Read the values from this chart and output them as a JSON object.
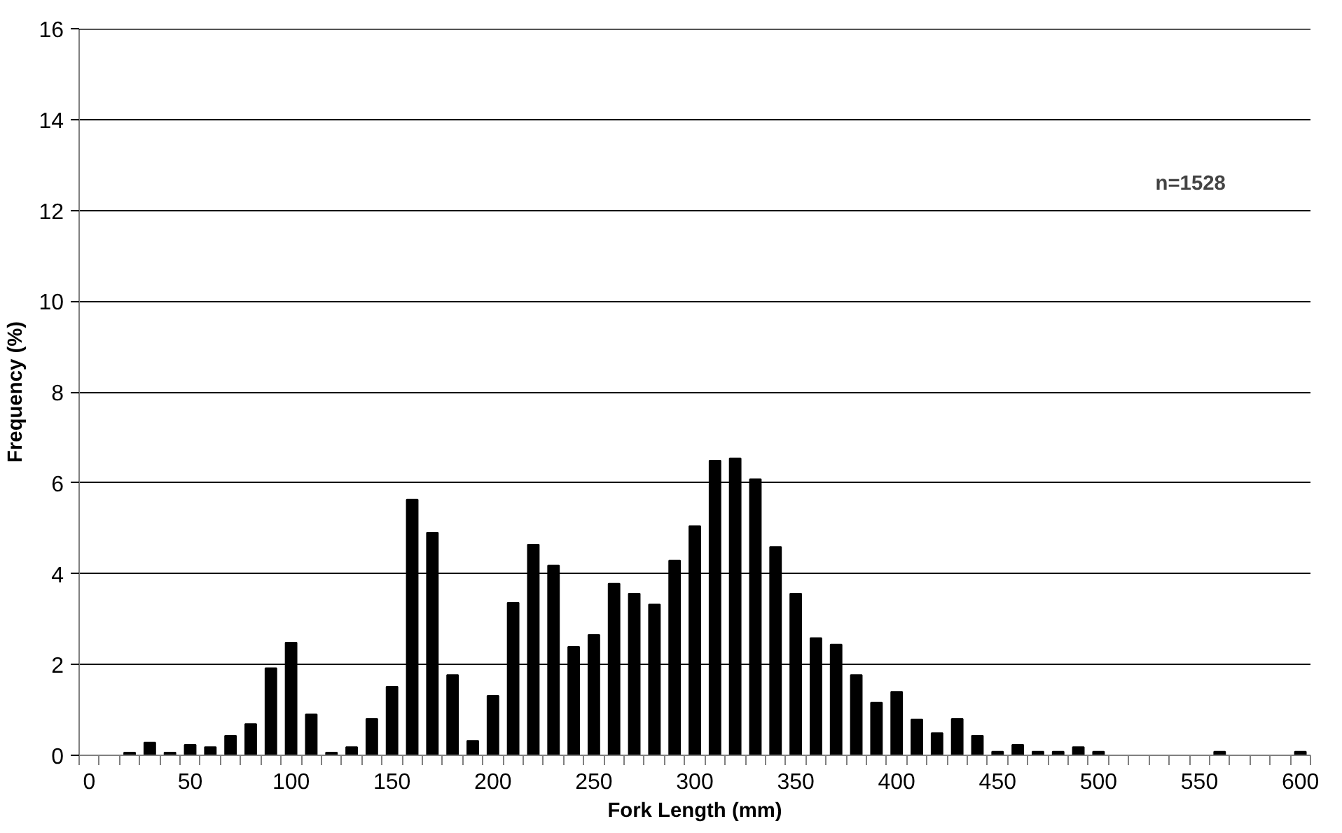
{
  "chart_data": {
    "type": "bar",
    "xlabel": "Fork Length (mm)",
    "ylabel": "Frequency (%)",
    "annotations": [
      "n=1528"
    ],
    "x": [
      0,
      10,
      20,
      30,
      40,
      50,
      60,
      70,
      80,
      90,
      100,
      110,
      120,
      130,
      140,
      150,
      160,
      170,
      180,
      190,
      200,
      210,
      220,
      230,
      240,
      250,
      260,
      270,
      280,
      290,
      300,
      310,
      320,
      330,
      340,
      350,
      360,
      370,
      380,
      390,
      400,
      410,
      420,
      430,
      440,
      450,
      460,
      470,
      480,
      490,
      500,
      510,
      520,
      530,
      540,
      550,
      560,
      570,
      580,
      590,
      600
    ],
    "values": [
      0,
      0,
      0.06,
      0.28,
      0.06,
      0.23,
      0.18,
      0.43,
      0.69,
      1.92,
      2.48,
      0.9,
      0.06,
      0.18,
      0.8,
      1.51,
      5.63,
      4.9,
      1.77,
      0.32,
      1.31,
      3.36,
      4.64,
      4.18,
      2.39,
      2.65,
      3.78,
      3.56,
      3.32,
      4.29,
      5.05,
      6.49,
      6.54,
      6.08,
      4.59,
      3.56,
      2.58,
      2.44,
      1.77,
      1.16,
      1.4,
      0.79,
      0.49,
      0.8,
      0.43,
      0.08,
      0.23,
      0.08,
      0.08,
      0.18,
      0.08,
      0,
      0,
      0,
      0,
      0,
      0.08,
      0,
      0,
      0,
      0.08
    ],
    "color": "#000000",
    "xlim": [
      -5,
      605
    ],
    "xticks": [
      0,
      50,
      100,
      150,
      200,
      250,
      300,
      350,
      400,
      450,
      500,
      550,
      600
    ],
    "ylim": [
      0,
      16
    ],
    "yticks": [
      0,
      2,
      4,
      6,
      8,
      10,
      12,
      14,
      16
    ],
    "grid": "y"
  }
}
